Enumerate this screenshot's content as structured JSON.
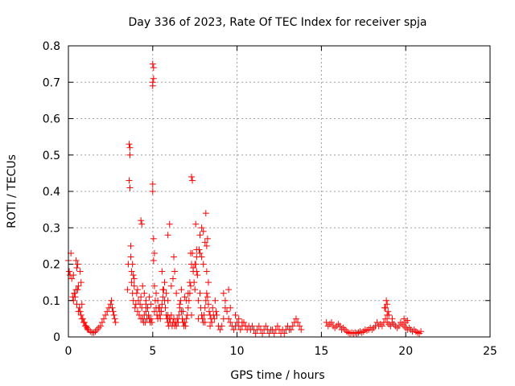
{
  "chart_data": {
    "type": "scatter",
    "title": "Day 336 of 2023, Rate Of TEC Index for receiver spja",
    "xlabel": "GPS time / hours",
    "ylabel": "ROTI / TECUs",
    "xlim": [
      0,
      25
    ],
    "ylim": [
      0,
      0.8
    ],
    "x_ticks": [
      "0",
      "5",
      "10",
      "15",
      "20",
      "25"
    ],
    "y_ticks": [
      "0",
      "0.1",
      "0.2",
      "0.3",
      "0.4",
      "0.5",
      "0.6",
      "0.7",
      "0.8"
    ],
    "grid": true,
    "marker": "plus",
    "color": "#ff0000",
    "series": [
      {
        "x": [
          0.0,
          0.05,
          0.1,
          0.15,
          0.2,
          0.25,
          0.3,
          0.35,
          0.4,
          0.45,
          0.5,
          0.55,
          0.6,
          0.65,
          0.7,
          0.75,
          0.8,
          0.85,
          0.9,
          0.95,
          1.0,
          1.05,
          1.1,
          1.15,
          1.2,
          1.3,
          1.4,
          1.5,
          1.6,
          1.7,
          1.8,
          1.9,
          2.0,
          2.1,
          2.2,
          2.3,
          2.4,
          2.5,
          2.55,
          2.6,
          2.65,
          2.7,
          2.75,
          2.8,
          0.3,
          0.45,
          0.5,
          0.6,
          0.7,
          0.75,
          0.8,
          0.35,
          0.55,
          3.5,
          3.55,
          3.6,
          3.6,
          3.65,
          3.65,
          3.65,
          3.7,
          3.7,
          3.75,
          3.75,
          3.8,
          3.8,
          3.85,
          3.85,
          3.9,
          3.95,
          4.0,
          4.05,
          4.1,
          4.15,
          4.2,
          4.25,
          4.3,
          4.35,
          4.4,
          4.45,
          4.5,
          4.55,
          4.6,
          4.65,
          4.7,
          4.75,
          4.8,
          4.85,
          4.9,
          4.95,
          5.0,
          5.0,
          5.0,
          5.0,
          5.0,
          5.05,
          5.05,
          5.05,
          5.1,
          5.15,
          5.2,
          5.25,
          5.3,
          5.35,
          5.4,
          5.45,
          5.5,
          5.55,
          5.6,
          5.65,
          5.7,
          5.75,
          5.8,
          5.85,
          5.9,
          5.95,
          6.0,
          6.05,
          6.1,
          6.15,
          6.2,
          6.25,
          6.3,
          6.35,
          6.4,
          6.45,
          6.5,
          6.55,
          6.6,
          6.65,
          6.7,
          6.75,
          6.8,
          6.85,
          6.9,
          6.95,
          7.0,
          7.05,
          7.1,
          7.15,
          7.2,
          7.25,
          7.3,
          7.35,
          7.4,
          7.45,
          7.5,
          7.55,
          7.6,
          7.65,
          7.7,
          7.75,
          7.8,
          7.85,
          7.9,
          7.95,
          8.0,
          8.05,
          8.1,
          8.15,
          8.2,
          8.25,
          8.3,
          8.35,
          8.4,
          8.45,
          8.5,
          8.55,
          8.6,
          8.65,
          8.7,
          8.75,
          8.8,
          4.4,
          4.5,
          4.6,
          4.7,
          4.8,
          4.9,
          5.1,
          5.2,
          5.3,
          5.4,
          5.6,
          5.7,
          5.8,
          5.9,
          6.1,
          6.2,
          6.3,
          6.4,
          6.6,
          6.7,
          6.9,
          7.0,
          7.1,
          7.2,
          7.4,
          7.5,
          7.6,
          7.8,
          7.9,
          8.0,
          8.2,
          8.3,
          3.9,
          4.1,
          4.3,
          4.6,
          5.5,
          5.9,
          6.0,
          6.5,
          6.8,
          7.3,
          7.7,
          8.1,
          8.4,
          4.3,
          4.35,
          5.05,
          5.1,
          5.55,
          5.9,
          6.25,
          6.0,
          7.3,
          7.35,
          7.55,
          7.8,
          8.0,
          8.1,
          8.2,
          7.25,
          7.6,
          7.9,
          8.15,
          8.25,
          8.9,
          9.0,
          9.1,
          9.2,
          9.3,
          9.4,
          9.5,
          9.6,
          9.7,
          9.8,
          9.9,
          10.0,
          10.1,
          10.2,
          10.3,
          10.4,
          10.5,
          10.6,
          10.7,
          10.8,
          10.9,
          11.0,
          11.1,
          11.2,
          11.3,
          11.4,
          11.5,
          11.6,
          11.7,
          11.8,
          11.9,
          12.0,
          12.1,
          12.2,
          12.3,
          12.4,
          12.5,
          12.6,
          12.7,
          12.8,
          12.9,
          13.0,
          13.1,
          13.2,
          13.3,
          13.4,
          13.5,
          13.6,
          13.7,
          13.8,
          9.2,
          9.3,
          9.5,
          9.6,
          9.9,
          10.1,
          10.3,
          10.5,
          15.3,
          15.4,
          15.5,
          15.6,
          15.7,
          15.8,
          15.9,
          16.0,
          16.1,
          16.2,
          16.3,
          16.4,
          16.5,
          16.6,
          16.7,
          16.8,
          16.9,
          17.0,
          17.1,
          17.2,
          17.3,
          17.4,
          17.5,
          17.6,
          17.7,
          17.8,
          17.9,
          18.0,
          18.1,
          18.2,
          18.3,
          18.4,
          18.5,
          18.6,
          18.7,
          18.8,
          18.9,
          19.0,
          19.1,
          19.2,
          19.3,
          19.4,
          19.5,
          19.6,
          19.7,
          19.8,
          19.9,
          20.0,
          20.1,
          20.2,
          20.3,
          20.4,
          20.5,
          20.6,
          20.7,
          20.8,
          20.9,
          18.8,
          18.85,
          18.9,
          18.95,
          19.0,
          18.75,
          18.9,
          19.2,
          19.9,
          20.0,
          20.1
        ],
        "y": [
          0.21,
          0.18,
          0.17,
          0.23,
          0.16,
          0.11,
          0.1,
          0.12,
          0.11,
          0.13,
          0.09,
          0.13,
          0.07,
          0.08,
          0.07,
          0.06,
          0.05,
          0.05,
          0.04,
          0.04,
          0.03,
          0.03,
          0.025,
          0.02,
          0.02,
          0.015,
          0.012,
          0.012,
          0.015,
          0.02,
          0.025,
          0.03,
          0.04,
          0.05,
          0.06,
          0.07,
          0.08,
          0.09,
          0.1,
          0.08,
          0.07,
          0.06,
          0.05,
          0.04,
          0.17,
          0.21,
          0.19,
          0.14,
          0.18,
          0.15,
          0.09,
          0.12,
          0.2,
          0.13,
          0.2,
          0.43,
          0.53,
          0.52,
          0.5,
          0.41,
          0.25,
          0.22,
          0.18,
          0.15,
          0.2,
          0.12,
          0.17,
          0.1,
          0.14,
          0.08,
          0.09,
          0.12,
          0.07,
          0.1,
          0.06,
          0.09,
          0.05,
          0.08,
          0.05,
          0.04,
          0.06,
          0.04,
          0.07,
          0.05,
          0.08,
          0.06,
          0.05,
          0.04,
          0.05,
          0.04,
          0.75,
          0.7,
          0.69,
          0.4,
          0.42,
          0.74,
          0.71,
          0.27,
          0.14,
          0.1,
          0.08,
          0.06,
          0.05,
          0.08,
          0.06,
          0.05,
          0.07,
          0.09,
          0.11,
          0.13,
          0.1,
          0.08,
          0.06,
          0.05,
          0.04,
          0.03,
          0.05,
          0.04,
          0.06,
          0.03,
          0.04,
          0.05,
          0.03,
          0.04,
          0.03,
          0.05,
          0.04,
          0.06,
          0.08,
          0.1,
          0.07,
          0.05,
          0.04,
          0.03,
          0.04,
          0.03,
          0.05,
          0.06,
          0.08,
          0.1,
          0.12,
          0.14,
          0.2,
          0.23,
          0.18,
          0.15,
          0.13,
          0.2,
          0.22,
          0.17,
          0.1,
          0.24,
          0.12,
          0.08,
          0.06,
          0.05,
          0.04,
          0.06,
          0.08,
          0.1,
          0.12,
          0.11,
          0.09,
          0.07,
          0.06,
          0.05,
          0.04,
          0.08,
          0.06,
          0.05,
          0.1,
          0.07,
          0.06,
          0.14,
          0.12,
          0.1,
          0.08,
          0.11,
          0.09,
          0.07,
          0.12,
          0.1,
          0.08,
          0.13,
          0.15,
          0.12,
          0.1,
          0.14,
          0.16,
          0.18,
          0.12,
          0.09,
          0.13,
          0.11,
          0.1,
          0.12,
          0.15,
          0.19,
          0.2,
          0.18,
          0.23,
          0.22,
          0.2,
          0.18,
          0.15,
          0.16,
          0.13,
          0.11,
          0.09,
          0.07,
          0.06,
          0.05,
          0.04,
          0.07,
          0.06,
          0.05,
          0.04,
          0.03,
          0.32,
          0.31,
          0.21,
          0.23,
          0.18,
          0.28,
          0.22,
          0.31,
          0.44,
          0.43,
          0.31,
          0.28,
          0.29,
          0.26,
          0.25,
          0.23,
          0.24,
          0.3,
          0.34,
          0.27,
          0.03,
          0.02,
          0.03,
          0.05,
          0.08,
          0.07,
          0.05,
          0.04,
          0.03,
          0.02,
          0.03,
          0.04,
          0.03,
          0.02,
          0.03,
          0.04,
          0.03,
          0.02,
          0.03,
          0.02,
          0.03,
          0.02,
          0.01,
          0.02,
          0.03,
          0.02,
          0.01,
          0.02,
          0.03,
          0.02,
          0.01,
          0.02,
          0.02,
          0.01,
          0.02,
          0.03,
          0.02,
          0.01,
          0.02,
          0.01,
          0.02,
          0.03,
          0.02,
          0.02,
          0.03,
          0.04,
          0.05,
          0.04,
          0.03,
          0.02,
          0.12,
          0.1,
          0.13,
          0.08,
          0.06,
          0.05,
          0.04,
          0.03,
          0.04,
          0.03,
          0.035,
          0.04,
          0.03,
          0.025,
          0.03,
          0.035,
          0.03,
          0.02,
          0.025,
          0.02,
          0.015,
          0.012,
          0.01,
          0.012,
          0.01,
          0.012,
          0.01,
          0.012,
          0.015,
          0.012,
          0.015,
          0.02,
          0.018,
          0.02,
          0.025,
          0.02,
          0.025,
          0.03,
          0.04,
          0.03,
          0.035,
          0.03,
          0.04,
          0.05,
          0.04,
          0.035,
          0.03,
          0.04,
          0.035,
          0.03,
          0.025,
          0.03,
          0.04,
          0.035,
          0.03,
          0.025,
          0.02,
          0.025,
          0.02,
          0.015,
          0.02,
          0.015,
          0.012,
          0.01,
          0.015,
          0.08,
          0.1,
          0.09,
          0.07,
          0.06,
          0.08,
          0.06,
          0.05,
          0.05,
          0.04,
          0.045
        ]
      }
    ]
  }
}
